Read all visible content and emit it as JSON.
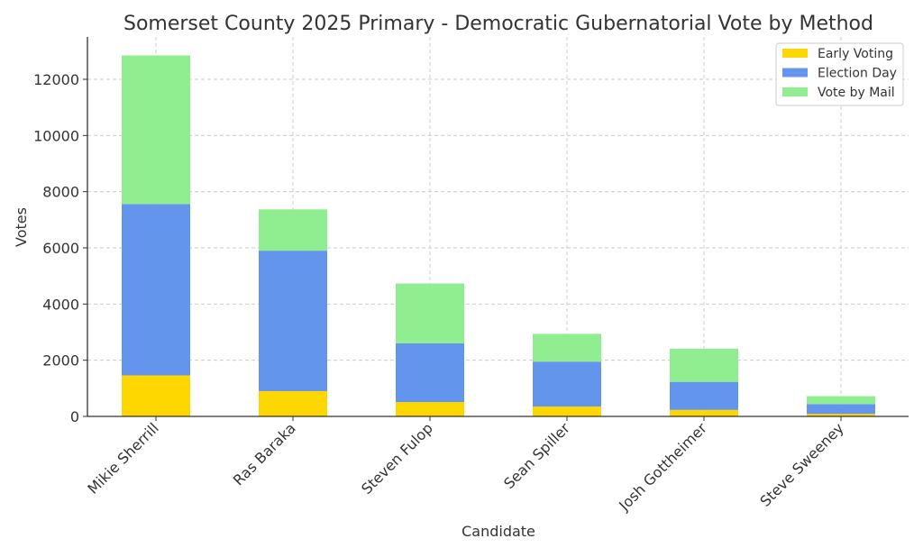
{
  "chart_data": {
    "type": "bar",
    "stacked": true,
    "title": "Somerset County 2025 Primary - Democratic Gubernatorial Vote by Method",
    "xlabel": "Candidate",
    "ylabel": "Votes",
    "categories": [
      "Mikie Sherrill",
      "Ras Baraka",
      "Steven Fulop",
      "Sean Spiller",
      "Josh Gottheimer",
      "Steve Sweeney"
    ],
    "series": [
      {
        "name": "Early Voting",
        "color": "#FFD700",
        "values": [
          1460,
          900,
          510,
          350,
          230,
          90
        ]
      },
      {
        "name": "Election Day",
        "color": "#6495ED",
        "values": [
          6100,
          5000,
          2090,
          1600,
          1000,
          350
        ]
      },
      {
        "name": "Vote by Mail",
        "color": "#90EE90",
        "values": [
          5290,
          1470,
          2130,
          990,
          1180,
          280
        ]
      }
    ],
    "ylim": [
      0,
      13500
    ],
    "yticks": [
      0,
      2000,
      4000,
      6000,
      8000,
      10000,
      12000
    ],
    "grid": true,
    "legend_position": "top-right"
  }
}
